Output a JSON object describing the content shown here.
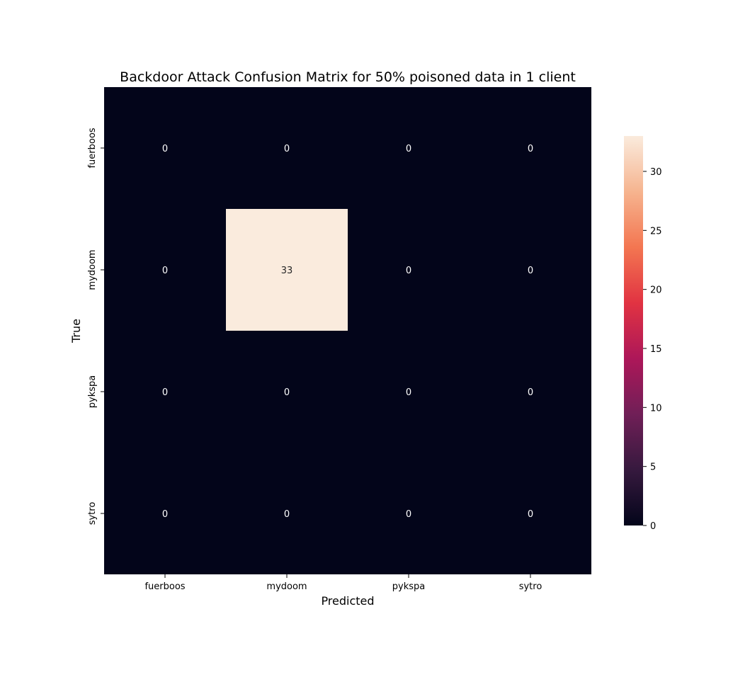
{
  "chart_data": {
    "type": "heatmap",
    "title": "Backdoor Attack Confusion Matrix for 50% poisoned data in 1 client",
    "xlabel": "Predicted",
    "ylabel": "True",
    "x_categories": [
      "fuerboos",
      "mydoom",
      "pykspa",
      "sytro"
    ],
    "y_categories": [
      "fuerboos",
      "mydoom",
      "pykspa",
      "sytro"
    ],
    "values": [
      [
        0,
        0,
        0,
        0
      ],
      [
        0,
        33,
        0,
        0
      ],
      [
        0,
        0,
        0,
        0
      ],
      [
        0,
        0,
        0,
        0
      ]
    ],
    "colorbar": {
      "range": [
        0,
        33
      ],
      "ticks": [
        0,
        5,
        10,
        15,
        20,
        25,
        30
      ]
    },
    "colormap": [
      "#03051a",
      "#36193e",
      "#701f57",
      "#ad1759",
      "#e13342",
      "#f37651",
      "#f6b48f",
      "#faebdd"
    ],
    "annotation_colors": {
      "light": "#ffffff",
      "dark": "#262626"
    }
  }
}
